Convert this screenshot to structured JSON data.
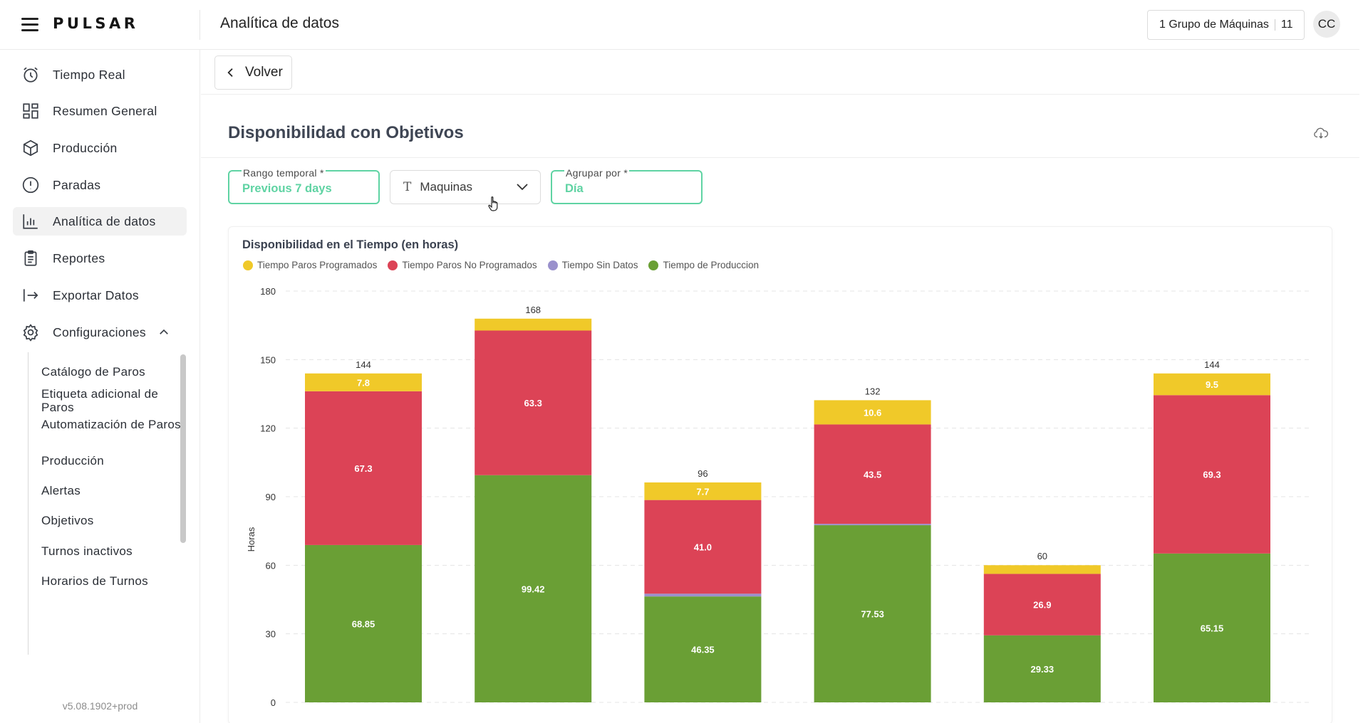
{
  "app": {
    "logo": "PULSAR",
    "page_heading": "Analítica de datos"
  },
  "header": {
    "group_label": "1 Grupo de Máquinas",
    "group_count": "11",
    "avatar": "CC"
  },
  "sidebar": {
    "items": [
      {
        "label": "Tiempo Real",
        "icon": "alarm-clock-icon"
      },
      {
        "label": "Resumen General",
        "icon": "dashboard-grid-icon"
      },
      {
        "label": "Producción",
        "icon": "cube-icon"
      },
      {
        "label": "Paradas",
        "icon": "alert-circle-icon"
      },
      {
        "label": "Analítica de datos",
        "icon": "bar-chart-icon",
        "active": true
      },
      {
        "label": "Reportes",
        "icon": "clipboard-icon"
      },
      {
        "label": "Exportar Datos",
        "icon": "export-arrow-icon"
      },
      {
        "label": "Configuraciones",
        "icon": "gear-icon",
        "expanded": true
      }
    ],
    "sub_items": [
      "Catálogo de Paros",
      "Etiqueta adicional de Paros",
      "Automatización de Paros",
      "Producción",
      "Alertas",
      "Objetivos",
      "Turnos inactivos",
      "Horarios de Turnos"
    ],
    "version": "v5.08.1902+prod"
  },
  "main": {
    "back_label": "Volver",
    "section_title": "Disponibilidad con Objetivos",
    "filters": {
      "range_label": "Rango temporal *",
      "range_value": "Previous 7 days",
      "machines_value": "Maquinas",
      "group_label": "Agrupar por *",
      "group_value": "Día"
    }
  },
  "colors": {
    "accent": "#5fd3a3",
    "programados": "#f0c929",
    "no_programados": "#dc4356",
    "sin_datos": "#9a91cc",
    "produccion": "#6a9f35"
  },
  "chart_data": {
    "type": "bar",
    "stacked": true,
    "title": "Disponibilidad en el Tiempo (en horas)",
    "ylabel": "Horas",
    "ylim": [
      0,
      180
    ],
    "yticks": [
      0,
      30,
      60,
      90,
      120,
      150,
      180
    ],
    "grid": true,
    "legend_position": "top-left",
    "series": [
      {
        "name": "Tiempo de Produccion",
        "color": "#6a9f35",
        "values": [
          68.85,
          99.42,
          46.35,
          77.53,
          29.33,
          65.15
        ],
        "labels": [
          "68.85",
          "99.42",
          "46.35",
          "77.53",
          "29.33",
          "65.15"
        ]
      },
      {
        "name": "Tiempo Sin Datos",
        "color": "#9a91cc",
        "values": [
          0,
          0,
          1.2,
          0.6,
          0,
          0
        ],
        "labels": [
          "",
          "",
          "",
          "",
          "",
          ""
        ]
      },
      {
        "name": "Tiempo Paros No Programados",
        "color": "#dc4356",
        "values": [
          67.3,
          63.3,
          41.0,
          43.5,
          26.9,
          69.3
        ],
        "labels": [
          "67.3",
          "63.3",
          "41.0",
          "43.5",
          "26.9",
          "69.3"
        ]
      },
      {
        "name": "Tiempo Paros Programados",
        "color": "#f0c929",
        "values": [
          7.8,
          5.2,
          7.7,
          10.6,
          3.8,
          9.5
        ],
        "labels": [
          "7.8",
          "",
          "7.7",
          "10.6",
          "",
          "9.5"
        ]
      }
    ],
    "totals": [
      "144",
      "168",
      "96",
      "132",
      "60",
      "144"
    ],
    "legend_order": [
      "Tiempo Paros Programados",
      "Tiempo Paros No Programados",
      "Tiempo Sin Datos",
      "Tiempo de Produccion"
    ]
  }
}
